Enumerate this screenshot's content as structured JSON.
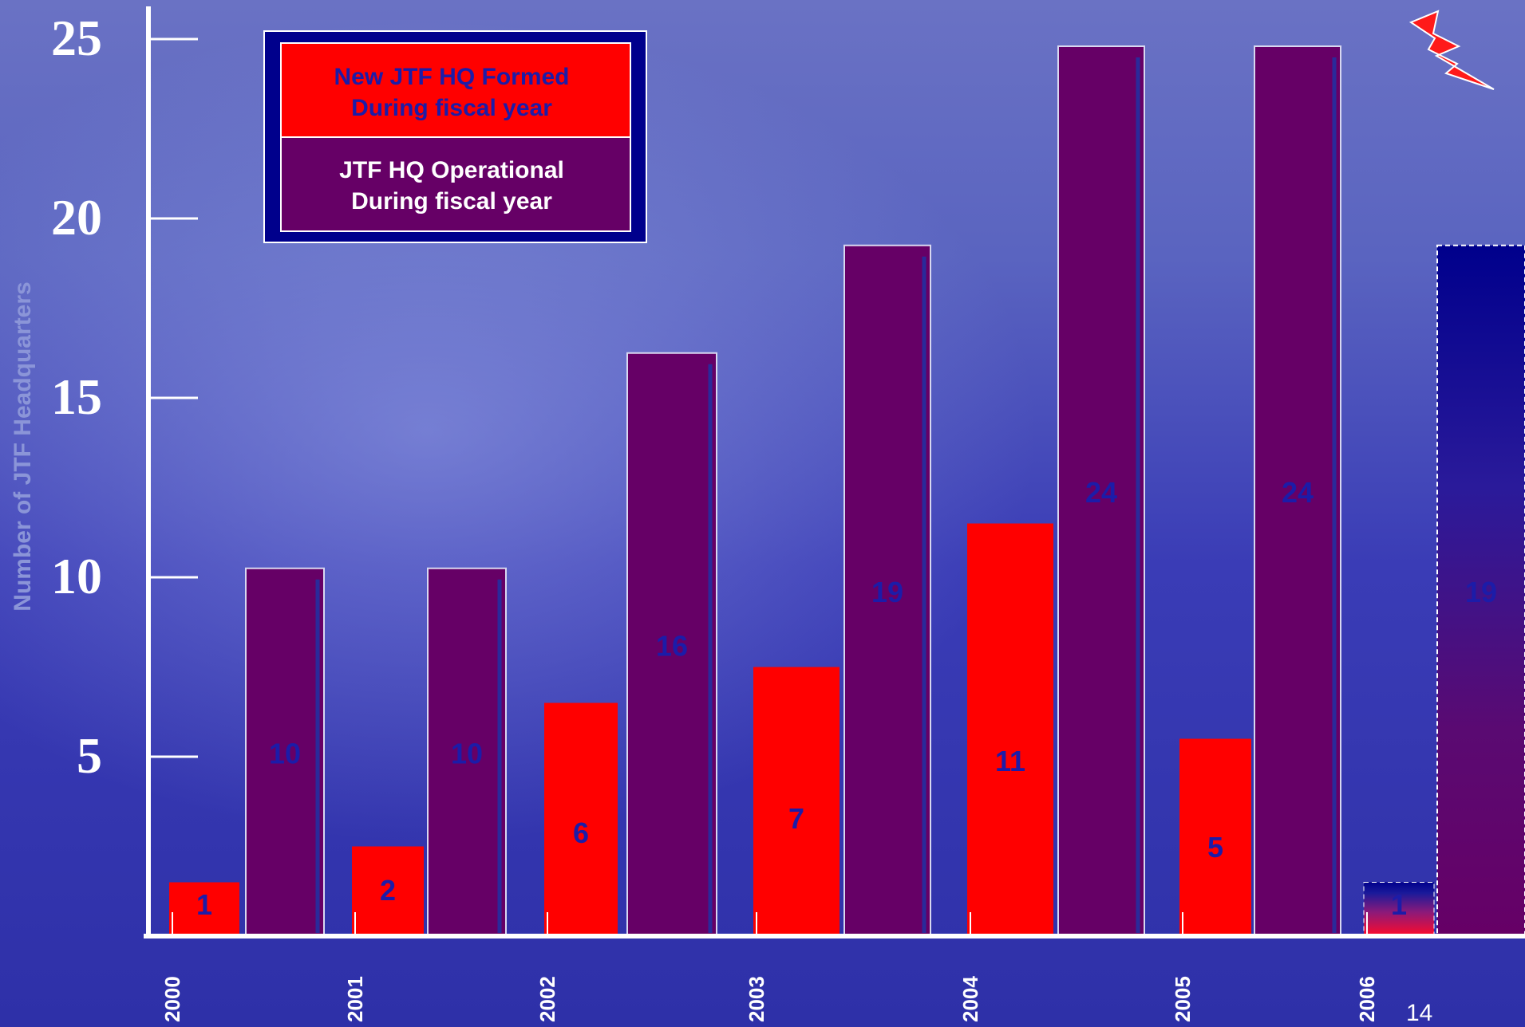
{
  "chart_data": {
    "type": "bar",
    "ylabel": "Number of JTF Headquarters",
    "ylim": [
      0,
      25
    ],
    "yticks": [
      5,
      10,
      15,
      20,
      25
    ],
    "categories": [
      "2000",
      "2001",
      "2002",
      "2003",
      "2004",
      "2005",
      "2006"
    ],
    "series": [
      {
        "name": "New JTF HQ Formed During fiscal year",
        "color": "#ff0000",
        "values": [
          1,
          2,
          6,
          7,
          11,
          5,
          1
        ]
      },
      {
        "name": "JTF HQ Operational During fiscal year",
        "color": "#660066",
        "values": [
          10,
          10,
          16,
          19,
          24,
          24,
          19
        ]
      }
    ],
    "legend": {
      "position": "top-left",
      "new_line1": "New JTF HQ Formed",
      "new_line2": "During fiscal year",
      "op_line1": "JTF HQ Operational",
      "op_line2": "During  fiscal year"
    },
    "grid": false
  },
  "page_number": "14",
  "icons": {
    "top_right": "lightning-bolt-icon"
  }
}
